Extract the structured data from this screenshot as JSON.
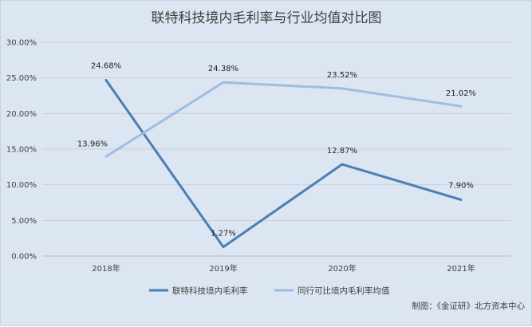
{
  "chart_data": {
    "type": "line",
    "title": "联特科技境内毛利率与行业均值对比图",
    "categories": [
      "2018年",
      "2019年",
      "2020年",
      "2021年"
    ],
    "y_tick_labels": [
      "0.00%",
      "5.00%",
      "10.00%",
      "15.00%",
      "20.00%",
      "25.00%",
      "30.00%"
    ],
    "ylim": [
      0,
      30
    ],
    "grid": true,
    "legend_position": "bottom",
    "series": [
      {
        "name": "联特科技境内毛利率",
        "color": "#4a7eb5",
        "values": [
          24.68,
          1.27,
          12.87,
          7.9
        ],
        "labels": [
          "24.68%",
          "1.27%",
          "12.87%",
          "7.90%"
        ]
      },
      {
        "name": "同行可比境内毛利率均值",
        "color": "#9dbde2",
        "values": [
          13.96,
          24.38,
          23.52,
          21.02
        ],
        "labels": [
          "13.96%",
          "24.38%",
          "23.52%",
          "21.02%"
        ]
      }
    ],
    "source": "制图：《金证研》北方资本中心"
  }
}
